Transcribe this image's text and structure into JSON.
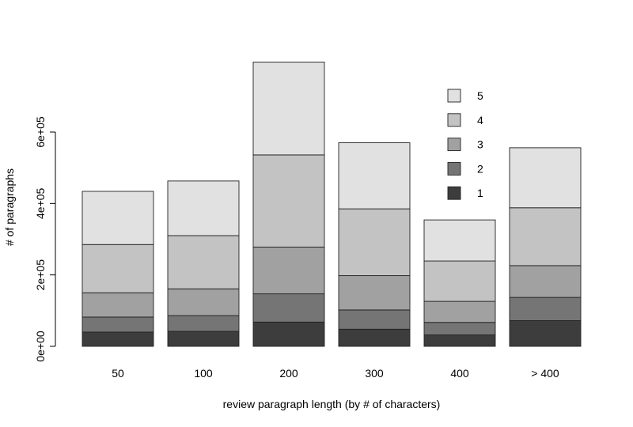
{
  "chart_data": {
    "type": "bar",
    "stacked": true,
    "categories": [
      "50",
      "100",
      "200",
      "300",
      "400",
      "> 400"
    ],
    "series": [
      {
        "name": "1",
        "color": "#3d3d3d",
        "values": [
          40000,
          42000,
          68000,
          48000,
          32000,
          72000
        ]
      },
      {
        "name": "2",
        "color": "#757575",
        "values": [
          42000,
          44000,
          79000,
          54000,
          35000,
          65000
        ]
      },
      {
        "name": "3",
        "color": "#a1a1a1",
        "values": [
          68000,
          75000,
          131000,
          96000,
          59000,
          89000
        ]
      },
      {
        "name": "4",
        "color": "#c3c3c3",
        "values": [
          135000,
          149000,
          258000,
          187000,
          113000,
          162000
        ]
      },
      {
        "name": "5",
        "color": "#e1e1e1",
        "values": [
          149000,
          153000,
          260000,
          185000,
          115000,
          168000
        ]
      }
    ],
    "xlabel": "review paragraph length (by # of characters)",
    "ylabel": "# of paragraphs",
    "yticks": [
      {
        "value": 0,
        "label": "0e+00"
      },
      {
        "value": 200000,
        "label": "2e+05"
      },
      {
        "value": 400000,
        "label": "4e+05"
      },
      {
        "value": 600000,
        "label": "6e+05"
      }
    ],
    "ylim": [
      0,
      800000
    ],
    "grid": false,
    "legend": {
      "placement": "top-right",
      "order": [
        "5",
        "4",
        "3",
        "2",
        "1"
      ]
    }
  }
}
